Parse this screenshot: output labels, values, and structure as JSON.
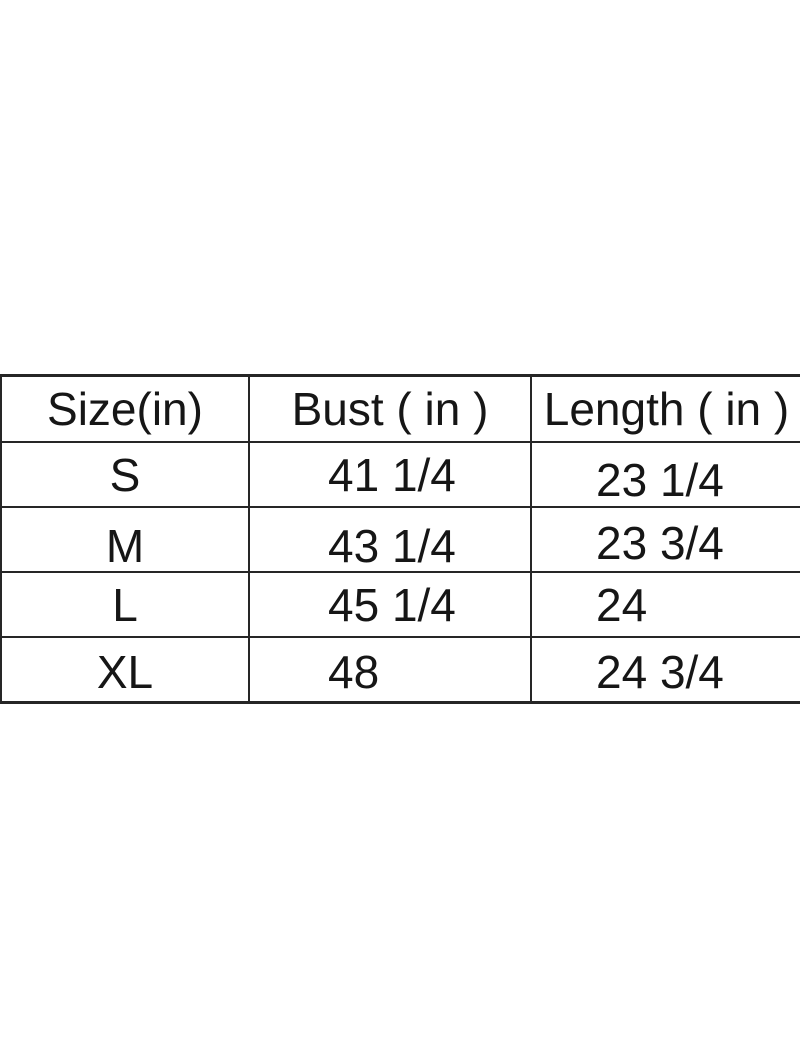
{
  "colors": {
    "background": "#ffffff",
    "text": "#161616",
    "table_lines": "#262626"
  },
  "size_chart": {
    "columns": [
      {
        "label": "Size(in)"
      },
      {
        "label": "Bust ( in )"
      },
      {
        "label": "Length ( in )"
      }
    ],
    "rows": [
      {
        "size": "S",
        "bust": "41 1/4",
        "length": "23 1/4"
      },
      {
        "size": "M",
        "bust": "43 1/4",
        "length": "23 3/4"
      },
      {
        "size": "L",
        "bust": "45 1/4",
        "length": "24"
      },
      {
        "size": "XL",
        "bust": "48",
        "length": "24 3/4"
      }
    ]
  },
  "chart_data": {
    "type": "table",
    "title": "",
    "columns": [
      "Size(in)",
      "Bust ( in )",
      "Length ( in )"
    ],
    "rows": [
      [
        "S",
        "41 1/4",
        "23 1/4"
      ],
      [
        "M",
        "43 1/4",
        "23 3/4"
      ],
      [
        "L",
        "45 1/4",
        "24"
      ],
      [
        "XL",
        "48",
        "24 3/4"
      ]
    ]
  }
}
